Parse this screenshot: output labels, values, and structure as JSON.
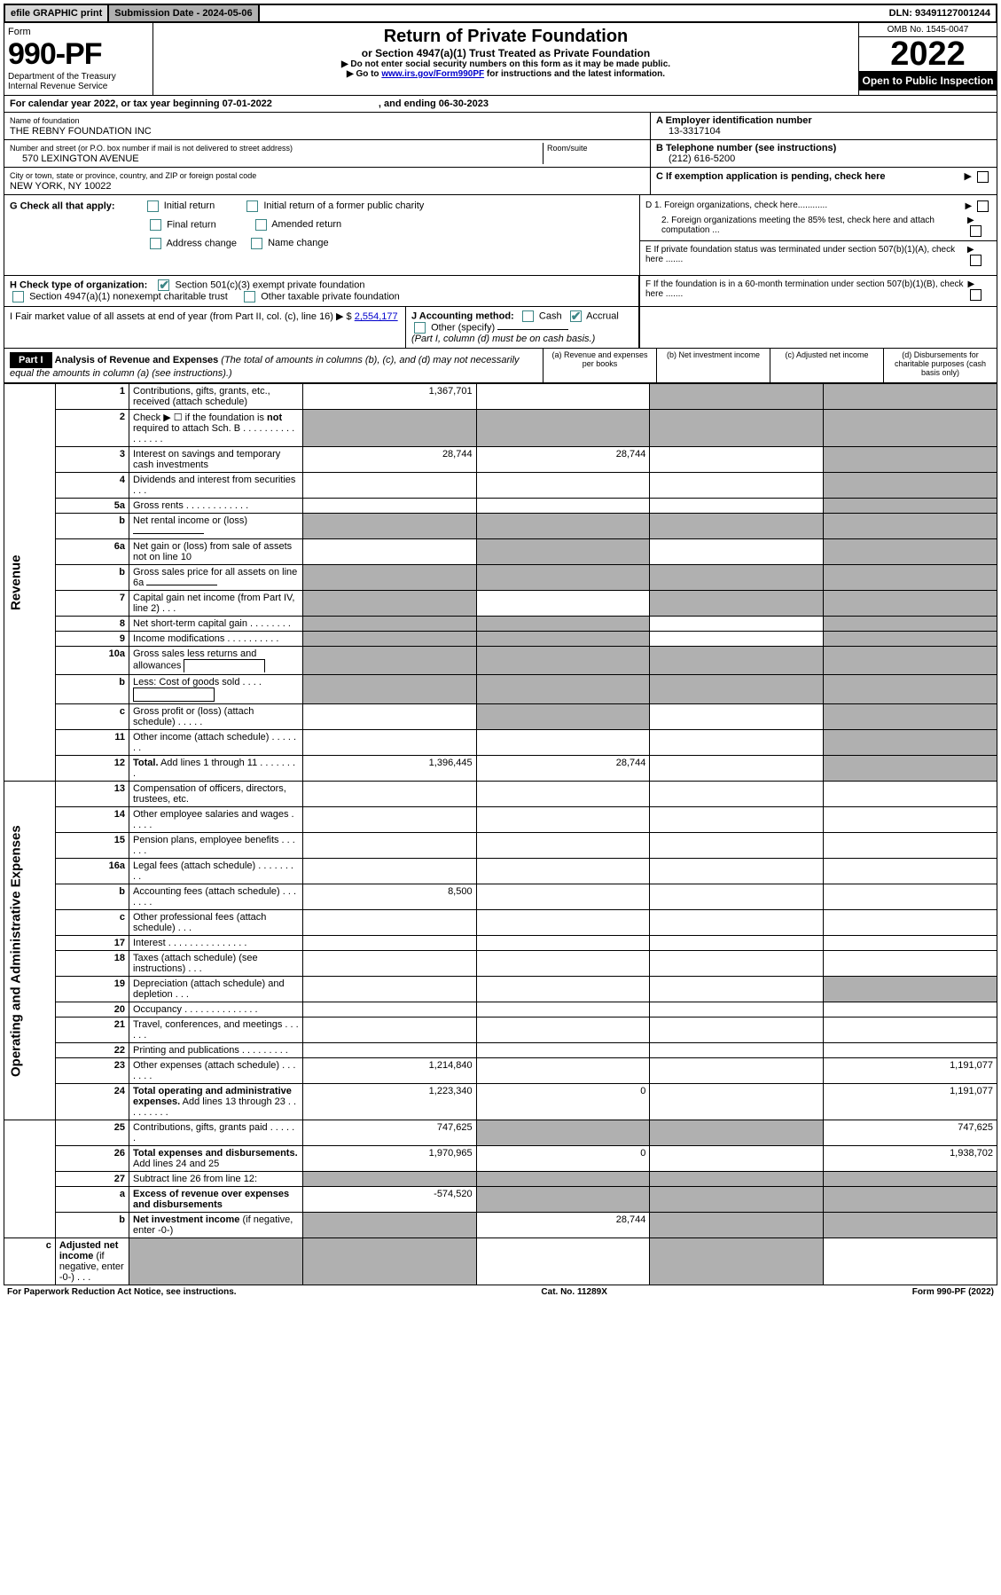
{
  "topbar": {
    "efile": "efile GRAPHIC print",
    "subdate_label": "Submission Date - 2024-05-06",
    "dln": "DLN: 93491127001244"
  },
  "header": {
    "form_label": "Form",
    "form_num": "990-PF",
    "dept": "Department of the Treasury",
    "irs": "Internal Revenue Service",
    "title": "Return of Private Foundation",
    "subtitle": "or Section 4947(a)(1) Trust Treated as Private Foundation",
    "note1": "▶ Do not enter social security numbers on this form as it may be made public.",
    "note2_a": "▶ Go to ",
    "note2_link": "www.irs.gov/Form990PF",
    "note2_b": " for instructions and the latest information.",
    "omb": "OMB No. 1545-0047",
    "year": "2022",
    "open": "Open to Public Inspection"
  },
  "calyear": {
    "a": "For calendar year 2022, or tax year beginning 07-01-2022",
    "b": ", and ending 06-30-2023"
  },
  "info": {
    "name_label": "Name of foundation",
    "name": "THE REBNY FOUNDATION INC",
    "addr_label": "Number and street (or P.O. box number if mail is not delivered to street address)",
    "addr": "570 LEXINGTON AVENUE",
    "room_label": "Room/suite",
    "city_label": "City or town, state or province, country, and ZIP or foreign postal code",
    "city": "NEW YORK, NY  10022",
    "a_label": "A Employer identification number",
    "a_val": "13-3317104",
    "b_label": "B Telephone number (see instructions)",
    "b_val": "(212) 616-5200",
    "c_label": "C If exemption application is pending, check here"
  },
  "g": {
    "label": "G Check all that apply:",
    "initial": "Initial return",
    "final": "Final return",
    "addrchg": "Address change",
    "initial_former": "Initial return of a former public charity",
    "amended": "Amended return",
    "namechg": "Name change"
  },
  "d": {
    "d1": "D 1. Foreign organizations, check here............",
    "d2": "2. Foreign organizations meeting the 85% test, check here and attach computation ...",
    "e": "E  If private foundation status was terminated under section 507(b)(1)(A), check here .......",
    "f": "F  If the foundation is in a 60-month termination under section 507(b)(1)(B), check here ......."
  },
  "h": {
    "label": "H Check type of organization:",
    "opt1": "Section 501(c)(3) exempt private foundation",
    "opt2": "Section 4947(a)(1) nonexempt charitable trust",
    "opt3": "Other taxable private foundation"
  },
  "i": {
    "label": "I Fair market value of all assets at end of year (from Part II, col. (c), line 16)",
    "val": "2,554,177"
  },
  "j": {
    "label": "J Accounting method:",
    "cash": "Cash",
    "accrual": "Accrual",
    "other": "Other (specify)",
    "note": "(Part I, column (d) must be on cash basis.)"
  },
  "part1": {
    "label": "Part I",
    "title": "Analysis of Revenue and Expenses",
    "title_note": " (The total of amounts in columns (b), (c), and (d) may not necessarily equal the amounts in column (a) (see instructions).)",
    "col_a": "(a)   Revenue and expenses per books",
    "col_b": "(b)   Net investment income",
    "col_c": "(c)   Adjusted net income",
    "col_d": "(d)   Disbursements for charitable purposes (cash basis only)"
  },
  "sidelabels": {
    "rev": "Revenue",
    "exp": "Operating and Administrative Expenses"
  },
  "rows": [
    {
      "ln": "1",
      "desc": "Contributions, gifts, grants, etc., received (attach schedule)",
      "a": "1,367,701",
      "b": "",
      "c_shade": true,
      "d_shade": true
    },
    {
      "ln": "2",
      "desc": "Check ▶ ☐ if the foundation is <b>not</b> required to attach Sch. B   .  .  .  .  .  .  .  .  .  .  .  .  .  .  .  .",
      "a_shade": true,
      "b_shade": true,
      "c_shade": true,
      "d_shade": true
    },
    {
      "ln": "3",
      "desc": "Interest on savings and temporary cash investments",
      "a": "28,744",
      "b": "28,744",
      "c": "",
      "d_shade": true
    },
    {
      "ln": "4",
      "desc": "Dividends and interest from securities    .   .   .",
      "a": "",
      "b": "",
      "c": "",
      "d_shade": true
    },
    {
      "ln": "5a",
      "desc": "Gross rents     .   .   .   .   .   .   .   .   .   .   .   .",
      "a": "",
      "b": "",
      "c": "",
      "d_shade": true
    },
    {
      "ln": "b",
      "desc": "Net rental income or (loss) <span class='input-line'></span>",
      "a_shade": true,
      "b_shade": true,
      "c_shade": true,
      "d_shade": true
    },
    {
      "ln": "6a",
      "desc": "Net gain or (loss) from sale of assets not on line 10",
      "a": "",
      "b_shade": true,
      "c": "",
      "d_shade": true
    },
    {
      "ln": "b",
      "desc": "Gross sales price for all assets on line 6a <span class='input-line'></span>",
      "a_shade": true,
      "b_shade": true,
      "c_shade": true,
      "d_shade": true
    },
    {
      "ln": "7",
      "desc": "Capital gain net income (from Part IV, line 2)   .   .   .",
      "a_shade": true,
      "b": "",
      "c_shade": true,
      "d_shade": true
    },
    {
      "ln": "8",
      "desc": "Net short-term capital gain  .   .   .   .   .   .   .   .",
      "a_shade": true,
      "b_shade": true,
      "c": "",
      "d_shade": true
    },
    {
      "ln": "9",
      "desc": "Income modifications  .   .   .   .   .   .   .   .   .   .",
      "a_shade": true,
      "b_shade": true,
      "c": "",
      "d_shade": true
    },
    {
      "ln": "10a",
      "desc": "Gross sales less returns and allowances <span style='display:inline-block;border:1px solid #000;border-bottom:none;width:90px;height:14px;vertical-align:middle'></span>",
      "a_shade": true,
      "b_shade": true,
      "c_shade": true,
      "d_shade": true
    },
    {
      "ln": "b",
      "desc": "Less: Cost of goods sold    .   .   .   . <span style='display:inline-block;border:1px solid #000;width:90px;height:14px;vertical-align:middle'></span>",
      "a_shade": true,
      "b_shade": true,
      "c_shade": true,
      "d_shade": true
    },
    {
      "ln": "c",
      "desc": "Gross profit or (loss) (attach schedule)   .   .   .   .   .",
      "a": "",
      "b_shade": true,
      "c": "",
      "d_shade": true
    },
    {
      "ln": "11",
      "desc": "Other income (attach schedule)   .   .   .   .   .   .   .",
      "a": "",
      "b": "",
      "c": "",
      "d_shade": true
    },
    {
      "ln": "12",
      "desc": "<b>Total.</b> Add lines 1 through 11   .   .   .   .   .   .   .   .",
      "a": "1,396,445",
      "b": "28,744",
      "c": "",
      "d_shade": true
    },
    {
      "ln": "13",
      "desc": "Compensation of officers, directors, trustees, etc.",
      "a": "",
      "b": "",
      "c": "",
      "d": ""
    },
    {
      "ln": "14",
      "desc": "Other employee salaries and wages   .   .   .   .   .",
      "a": "",
      "b": "",
      "c": "",
      "d": ""
    },
    {
      "ln": "15",
      "desc": "Pension plans, employee benefits  .   .   .   .   .   .",
      "a": "",
      "b": "",
      "c": "",
      "d": ""
    },
    {
      "ln": "16a",
      "desc": "Legal fees (attach schedule) .   .   .   .   .   .   .   .   .",
      "a": "",
      "b": "",
      "c": "",
      "d": ""
    },
    {
      "ln": "b",
      "desc": "Accounting fees (attach schedule) .   .   .   .   .   .   .",
      "a": "8,500",
      "b": "",
      "c": "",
      "d": ""
    },
    {
      "ln": "c",
      "desc": "Other professional fees (attach schedule)   .   .   .",
      "a": "",
      "b": "",
      "c": "",
      "d": ""
    },
    {
      "ln": "17",
      "desc": "Interest  .   .   .   .   .   .   .   .   .   .   .   .   .   .   .",
      "a": "",
      "b": "",
      "c": "",
      "d": ""
    },
    {
      "ln": "18",
      "desc": "Taxes (attach schedule) (see instructions)   .   .   .",
      "a": "",
      "b": "",
      "c": "",
      "d": ""
    },
    {
      "ln": "19",
      "desc": "Depreciation (attach schedule) and depletion   .   .   .",
      "a": "",
      "b": "",
      "c": "",
      "d_shade": true
    },
    {
      "ln": "20",
      "desc": "Occupancy .   .   .   .   .   .   .   .   .   .   .   .   .   .",
      "a": "",
      "b": "",
      "c": "",
      "d": ""
    },
    {
      "ln": "21",
      "desc": "Travel, conferences, and meetings  .   .   .   .   .   .",
      "a": "",
      "b": "",
      "c": "",
      "d": ""
    },
    {
      "ln": "22",
      "desc": "Printing and publications  .   .   .   .   .   .   .   .   .",
      "a": "",
      "b": "",
      "c": "",
      "d": ""
    },
    {
      "ln": "23",
      "desc": "Other expenses (attach schedule)  .   .   .   .   .   .   .",
      "a": "1,214,840",
      "b": "",
      "c": "",
      "d": "1,191,077"
    },
    {
      "ln": "24",
      "desc": "<b>Total operating and administrative expenses.</b> Add lines 13 through 23   .   .   .   .   .   .   .   .   .",
      "a": "1,223,340",
      "b": "0",
      "c": "",
      "d": "1,191,077"
    },
    {
      "ln": "25",
      "desc": "Contributions, gifts, grants paid    .   .   .   .   .   .",
      "a": "747,625",
      "b_shade": true,
      "c_shade": true,
      "d": "747,625"
    },
    {
      "ln": "26",
      "desc": "<b>Total expenses and disbursements.</b> Add lines 24 and 25",
      "a": "1,970,965",
      "b": "0",
      "c": "",
      "d": "1,938,702"
    },
    {
      "ln": "27",
      "desc": "Subtract line 26 from line 12:",
      "a_shade": true,
      "b_shade": true,
      "c_shade": true,
      "d_shade": true
    },
    {
      "ln": "a",
      "desc": "<b>Excess of revenue over expenses and disbursements</b>",
      "a": "-574,520",
      "b_shade": true,
      "c_shade": true,
      "d_shade": true
    },
    {
      "ln": "b",
      "desc": "<b>Net investment income</b> (if negative, enter -0-)",
      "a_shade": true,
      "b": "28,744",
      "c_shade": true,
      "d_shade": true
    },
    {
      "ln": "c",
      "desc": "<b>Adjusted net income</b> (if negative, enter -0-)   .   .   .",
      "a_shade": true,
      "b_shade": true,
      "c": "",
      "d_shade": true
    }
  ],
  "footer": {
    "left": "For Paperwork Reduction Act Notice, see instructions.",
    "mid": "Cat. No. 11289X",
    "right": "Form 990-PF (2022)"
  }
}
